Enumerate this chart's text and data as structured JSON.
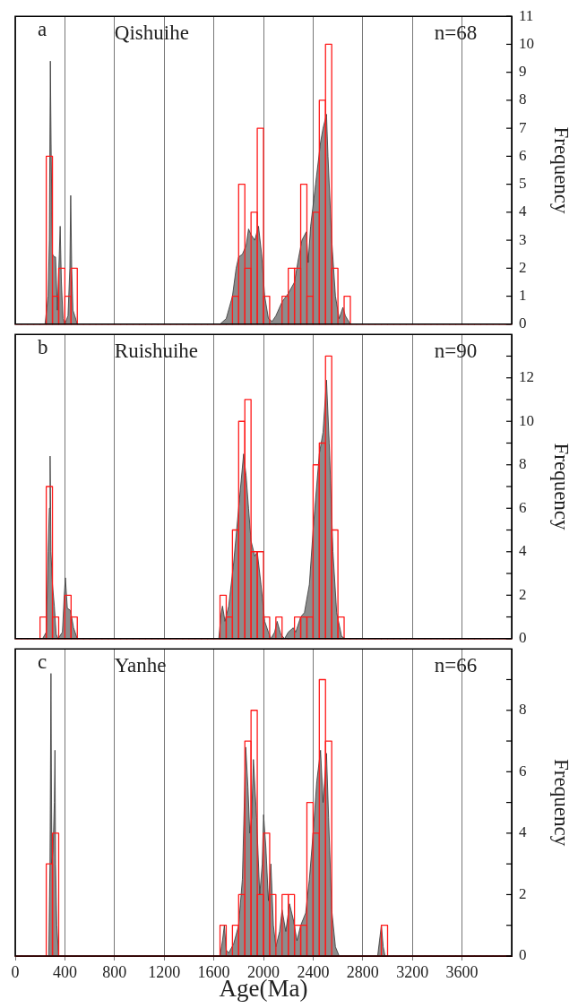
{
  "chart_data": [
    {
      "type": "histogram",
      "title": "Qishuihe",
      "annotations": [
        "a",
        "n=68"
      ],
      "ylabel": "Frequency",
      "xlim": [
        0,
        4000
      ],
      "xticks": [
        0,
        400,
        800,
        1200,
        1600,
        2000,
        2400,
        2800,
        3200,
        3600
      ],
      "ylim": [
        0,
        11
      ],
      "yticks": [
        0,
        1,
        2,
        3,
        4,
        5,
        6,
        7,
        8,
        9,
        10,
        11
      ],
      "grid": "x",
      "legend": false,
      "tick_labels": "y",
      "bins": [
        0,
        50,
        100,
        150,
        200,
        250,
        300,
        350,
        400,
        450,
        500,
        550,
        600,
        650,
        700,
        750,
        800,
        850,
        900,
        950,
        1000,
        1050,
        1100,
        1150,
        1200,
        1250,
        1300,
        1350,
        1400,
        1450,
        1500,
        1550,
        1600,
        1650,
        1700,
        1750,
        1800,
        1850,
        1900,
        1950,
        2000,
        2050,
        2100,
        2150,
        2200,
        2250,
        2300,
        2350,
        2400,
        2450,
        2500,
        2550,
        2600,
        2650,
        2700,
        2750,
        2800,
        2850,
        2900,
        2950,
        3000,
        3050,
        3100,
        3150,
        3200,
        3250,
        3300,
        3350,
        3400,
        3450,
        3500,
        3550,
        3600,
        3650,
        3700,
        3750,
        3800,
        3850,
        3900,
        3950,
        4000
      ],
      "color": "#ff1a1a",
      "values": [
        0,
        0,
        0,
        0,
        0,
        6,
        1,
        2,
        1,
        2,
        0,
        0,
        0,
        0,
        0,
        0,
        0,
        0,
        0,
        0,
        0,
        0,
        0,
        0,
        0,
        0,
        0,
        0,
        0,
        0,
        0,
        0,
        0,
        0,
        0,
        1,
        5,
        2,
        4,
        7,
        1,
        0,
        0,
        1,
        2,
        2,
        5,
        1,
        4,
        8,
        10,
        2,
        0,
        1,
        0,
        0,
        0,
        0,
        0,
        0,
        0,
        0,
        0,
        0,
        0,
        0,
        0,
        0,
        0,
        0,
        0,
        0,
        0,
        0,
        0,
        0,
        0,
        0,
        0,
        0
      ],
      "series": [
        {
          "type": "area",
          "color": "#8c8c8c",
          "x": [
            240,
            265,
            275,
            283,
            290,
            300,
            315,
            325,
            340,
            355,
            362,
            372,
            385,
            400,
            425,
            440,
            447,
            455,
            465,
            480,
            500,
            1650,
            1700,
            1750,
            1780,
            1800,
            1830,
            1860,
            1880,
            1900,
            1930,
            1960,
            1985,
            2010,
            2040,
            2070,
            2100,
            2150,
            2200,
            2250,
            2280,
            2310,
            2345,
            2360,
            2380,
            2420,
            2460,
            2480,
            2508,
            2520,
            2550,
            2580,
            2610,
            2640,
            2660,
            2700
          ],
          "values": [
            0,
            1,
            3,
            9.4,
            6,
            2.5,
            2.4,
            2.4,
            0.5,
            2.5,
            3.5,
            1.5,
            0.2,
            0,
            0.3,
            2,
            4.6,
            2,
            0.5,
            0.3,
            0,
            0,
            0.2,
            1,
            2,
            2.4,
            2.5,
            2.8,
            3.4,
            3.2,
            3,
            3.5,
            2.5,
            1,
            0.2,
            0.1,
            0.3,
            0.8,
            1.1,
            1.5,
            2.3,
            3,
            3.3,
            2.2,
            3.5,
            5,
            6.5,
            7,
            7.5,
            6,
            3,
            1,
            0.2,
            0.6,
            0.3,
            0
          ]
        }
      ]
    },
    {
      "type": "histogram",
      "title": "Ruishuihe",
      "annotations": [
        "b",
        "n=90"
      ],
      "ylabel": "Frequency",
      "xlim": [
        0,
        4000
      ],
      "xticks": [
        0,
        400,
        800,
        1200,
        1600,
        2000,
        2400,
        2800,
        3200,
        3600
      ],
      "ylim": [
        0,
        14
      ],
      "yticks": [
        0,
        {
          "value": 1,
          "label": null
        },
        2,
        {
          "value": 3,
          "label": null
        },
        4,
        {
          "value": 5,
          "label": null
        },
        6,
        {
          "value": 7,
          "label": null
        },
        8,
        {
          "value": 9,
          "label": null
        },
        10,
        {
          "value": 11,
          "label": null
        },
        12,
        {
          "value": 13,
          "label": null
        }
      ],
      "grid": "x",
      "legend": false,
      "tick_labels": "y",
      "bins": [
        0,
        50,
        100,
        150,
        200,
        250,
        300,
        350,
        400,
        450,
        500,
        550,
        600,
        650,
        700,
        750,
        800,
        850,
        900,
        950,
        1000,
        1050,
        1100,
        1150,
        1200,
        1250,
        1300,
        1350,
        1400,
        1450,
        1500,
        1550,
        1600,
        1650,
        1700,
        1750,
        1800,
        1850,
        1900,
        1950,
        2000,
        2050,
        2100,
        2150,
        2200,
        2250,
        2300,
        2350,
        2400,
        2450,
        2500,
        2550,
        2600,
        2650,
        2700,
        2750,
        2800,
        2850,
        2900,
        2950,
        3000,
        3050,
        3100,
        3150,
        3200,
        3250,
        3300,
        3350,
        3400,
        3450,
        3500,
        3550,
        3600,
        3650,
        3700,
        3750,
        3800,
        3850,
        3900,
        3950,
        4000
      ],
      "color": "#ff1a1a",
      "values": [
        0,
        0,
        0,
        0,
        1,
        7,
        1,
        0,
        2,
        1,
        0,
        0,
        0,
        0,
        0,
        0,
        0,
        0,
        0,
        0,
        0,
        0,
        0,
        0,
        0,
        0,
        0,
        0,
        0,
        0,
        0,
        0,
        0,
        2,
        1,
        5,
        10,
        11,
        4,
        4,
        1,
        0,
        1,
        0,
        0,
        1,
        1,
        1,
        8,
        9,
        13,
        5,
        1,
        0,
        0,
        0,
        0,
        0,
        0,
        0,
        0,
        0,
        0,
        0,
        0,
        0,
        0,
        0,
        0,
        0,
        0,
        0,
        0,
        0,
        0,
        0,
        0,
        0,
        0,
        0
      ],
      "series": [
        {
          "type": "area",
          "color": "#8c8c8c",
          "x": [
            220,
            250,
            265,
            275,
            281,
            288,
            300,
            315,
            330,
            345,
            380,
            395,
            404,
            420,
            445,
            470,
            500,
            1640,
            1660,
            1670,
            1690,
            1720,
            1760,
            1800,
            1840,
            1860,
            1880,
            1900,
            1930,
            1950,
            1980,
            2010,
            2040,
            2060,
            2090,
            2110,
            2140,
            2170,
            2200,
            2240,
            2260,
            2300,
            2330,
            2370,
            2400,
            2450,
            2480,
            2508,
            2530,
            2560,
            2590,
            2630,
            2660
          ],
          "values": [
            0,
            0.3,
            4,
            6,
            8.4,
            4,
            2.5,
            1.5,
            0.2,
            0,
            0.3,
            2,
            2.8,
            1.4,
            1.3,
            0.5,
            0,
            0,
            1.2,
            1.5,
            0.8,
            1.5,
            3.5,
            6,
            8.5,
            7.5,
            6,
            4.5,
            3.8,
            4,
            2.5,
            0.8,
            0.3,
            0,
            0.3,
            0.8,
            0.2,
            0,
            0.3,
            0.5,
            0.3,
            1,
            1.2,
            2.5,
            5,
            8.5,
            9.5,
            11.9,
            9,
            4,
            1.2,
            0.1,
            0
          ]
        }
      ]
    },
    {
      "type": "histogram",
      "title": "Yanhe",
      "annotations": [
        "c",
        "n=66"
      ],
      "xlabel": "Age(Ma)",
      "ylabel": "Frequency",
      "xlim": [
        0,
        4000
      ],
      "xticks": [
        0,
        400,
        800,
        1200,
        1600,
        2000,
        2400,
        2800,
        3200,
        3600
      ],
      "ylim": [
        0,
        10
      ],
      "yticks": [
        0,
        {
          "value": 1,
          "label": null
        },
        2,
        {
          "value": 3,
          "label": null
        },
        4,
        {
          "value": 5,
          "label": null
        },
        6,
        {
          "value": 7,
          "label": null
        },
        8,
        {
          "value": 9,
          "label": null
        }
      ],
      "grid": "x",
      "legend": false,
      "bins": [
        0,
        50,
        100,
        150,
        200,
        250,
        300,
        350,
        400,
        450,
        500,
        550,
        600,
        650,
        700,
        750,
        800,
        850,
        900,
        950,
        1000,
        1050,
        1100,
        1150,
        1200,
        1250,
        1300,
        1350,
        1400,
        1450,
        1500,
        1550,
        1600,
        1650,
        1700,
        1750,
        1800,
        1850,
        1900,
        1950,
        2000,
        2050,
        2100,
        2150,
        2200,
        2250,
        2300,
        2350,
        2400,
        2450,
        2500,
        2550,
        2600,
        2650,
        2700,
        2750,
        2800,
        2850,
        2900,
        2950,
        3000,
        3050,
        3100,
        3150,
        3200,
        3250,
        3300,
        3350,
        3400,
        3450,
        3500,
        3550,
        3600,
        3650,
        3700,
        3750,
        3800,
        3850,
        3900,
        3950,
        4000
      ],
      "color": "#ff1a1a",
      "values": [
        0,
        0,
        0,
        0,
        0,
        3,
        4,
        0,
        0,
        0,
        0,
        0,
        0,
        0,
        0,
        0,
        0,
        0,
        0,
        0,
        0,
        0,
        0,
        0,
        0,
        0,
        0,
        0,
        0,
        0,
        0,
        0,
        0,
        1,
        0,
        1,
        2,
        7,
        8,
        2,
        4,
        2,
        0,
        2,
        2,
        1,
        1,
        5,
        4,
        9,
        7,
        0,
        0,
        0,
        0,
        0,
        0,
        0,
        0,
        1,
        0,
        0,
        0,
        0,
        0,
        0,
        0,
        0,
        0,
        0,
        0,
        0,
        0,
        0,
        0,
        0,
        0,
        0,
        0,
        0
      ],
      "series": [
        {
          "type": "area",
          "color": "#8c8c8c",
          "x": [
            270,
            280,
            288,
            295,
            305,
            315,
            320,
            325,
            335,
            350,
            1650,
            1670,
            1685,
            1700,
            1720,
            1760,
            1800,
            1830,
            1857,
            1875,
            1890,
            1905,
            1919,
            1945,
            1970,
            1990,
            2001,
            2020,
            2040,
            2060,
            2080,
            2100,
            2130,
            2150,
            2180,
            2210,
            2240,
            2270,
            2300,
            2340,
            2370,
            2400,
            2430,
            2460,
            2480,
            2508,
            2525,
            2550,
            2580,
            2610,
            2920,
            2935,
            2950,
            2965,
            2980
          ],
          "values": [
            0,
            3,
            9.2,
            3,
            3.5,
            5,
            6.7,
            3,
            1,
            0,
            0,
            0.5,
            1,
            0.2,
            0.1,
            0.4,
            1,
            2.5,
            6.8,
            5.5,
            4,
            4.5,
            6.4,
            4.5,
            2,
            3,
            4.6,
            3.5,
            1.8,
            3,
            1,
            0.3,
            0.8,
            1.5,
            0.8,
            1.7,
            1.2,
            0.5,
            1,
            1.4,
            2.5,
            4,
            5.7,
            6.7,
            5,
            6.6,
            4.5,
            1.5,
            0.3,
            0,
            0,
            0.5,
            1,
            0.3,
            0
          ]
        }
      ]
    }
  ]
}
